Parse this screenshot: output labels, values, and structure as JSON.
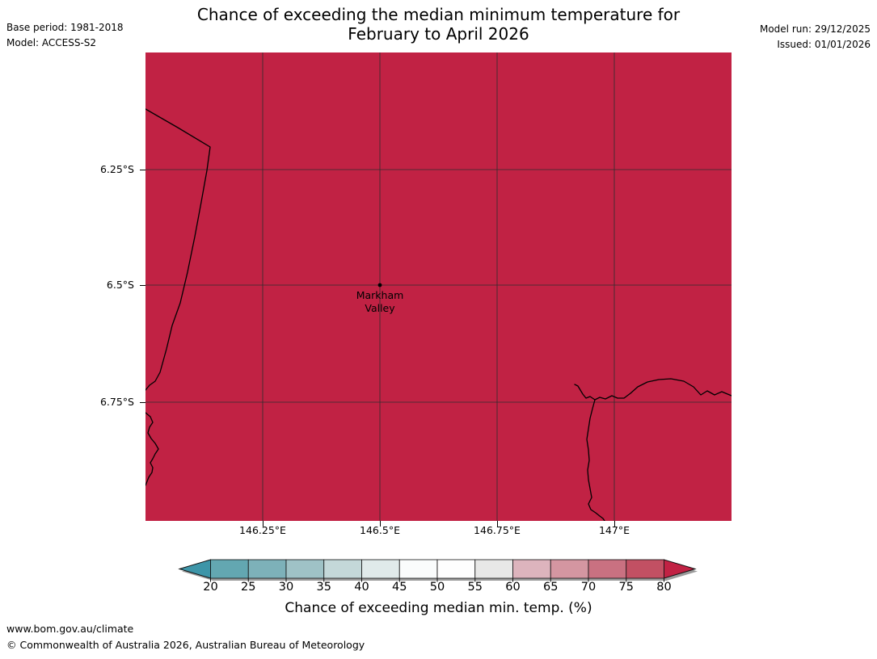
{
  "header": {
    "title_line1": "Chance of exceeding the median minimum temperature for",
    "title_line2": "February to April 2026",
    "base_period": "Base period: 1981-2018",
    "model": "Model: ACCESS-S2",
    "model_run": "Model run: 29/12/2025",
    "issued": "Issued: 01/01/2026"
  },
  "map": {
    "fill_color": "#c12244",
    "marker": {
      "name_line1": "Markham",
      "name_line2": "Valley"
    },
    "lat_labels": [
      "6.25°S",
      "6.5°S",
      "6.75°S"
    ],
    "lon_labels": [
      "146.25°E",
      "146.5°E",
      "146.75°E",
      "147°E"
    ]
  },
  "colorbar": {
    "label": "Chance of exceeding median min. temp. (%)",
    "ticks": [
      "20",
      "25",
      "30",
      "35",
      "40",
      "45",
      "50",
      "55",
      "60",
      "65",
      "70",
      "75",
      "80"
    ],
    "segment_colors": [
      "#63a7b1",
      "#7db1b9",
      "#9fc2c6",
      "#c4d8d9",
      "#e0eaea",
      "#fafcfc",
      "#fefefe",
      "#e8e8e7",
      "#ddb4bd",
      "#d496a1",
      "#c97181",
      "#c25063"
    ],
    "arrow_left_color": "#3d95a8",
    "arrow_right_color": "#c12244"
  },
  "footer": {
    "url": "www.bom.gov.au/climate",
    "copyright": "© Commonwealth of Australia 2026, Australian Bureau of Meteorology"
  },
  "chart_data": {
    "type": "heatmap",
    "title": "Chance of exceeding the median minimum temperature for February to April 2026",
    "model": "ACCESS-S2",
    "base_period": "1981-2018",
    "map_extent": {
      "lon_deg_e": [
        146.0,
        147.25
      ],
      "lat_deg_s": [
        6.0,
        7.0
      ]
    },
    "lat_gridlines_deg_s": [
      6.25,
      6.5,
      6.75
    ],
    "lon_gridlines_deg_e": [
      146.25,
      146.5,
      146.75,
      147.0
    ],
    "marker": {
      "label": "Markham Valley",
      "lon_deg_e": 146.5,
      "lat_deg_s": 6.5
    },
    "region_value": "entire mapped region exceeds 80% (top colorbar arrow color)",
    "colorbar": {
      "label": "Chance of exceeding median min. temp. (%)",
      "ticks": [
        20,
        25,
        30,
        35,
        40,
        45,
        50,
        55,
        60,
        65,
        70,
        75,
        80
      ],
      "open_ended_arrows": true,
      "legend_position": "bottom"
    }
  }
}
